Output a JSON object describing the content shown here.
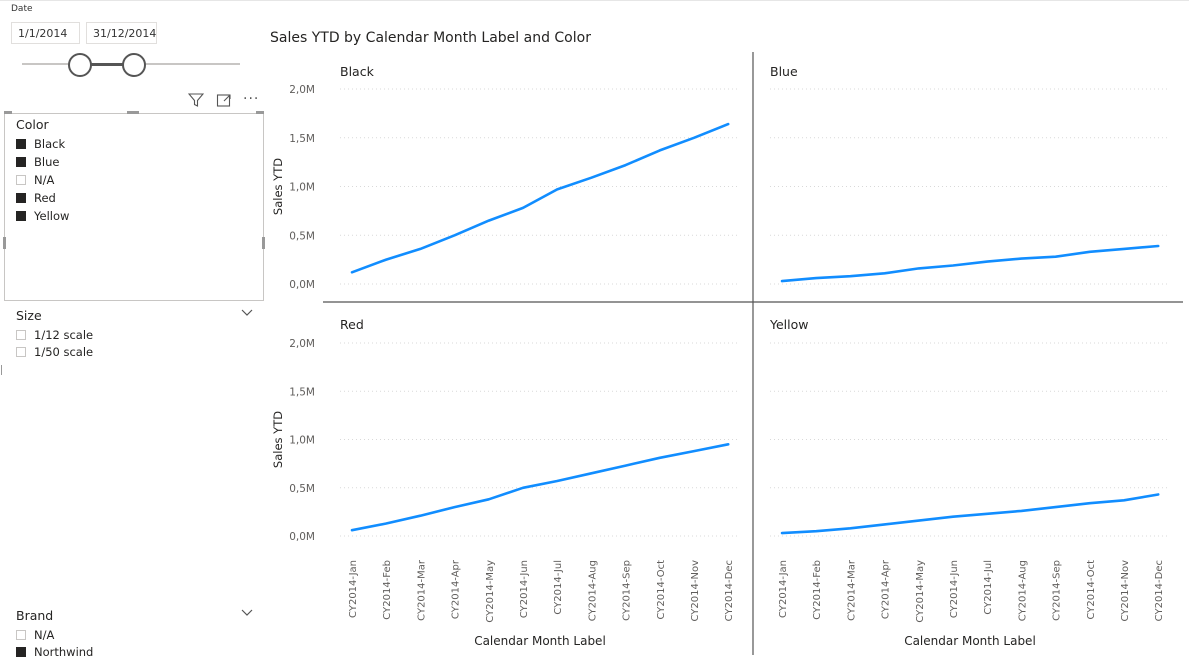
{
  "date_slicer": {
    "label": "Date",
    "start": "1/1/2014",
    "end": "31/12/2014"
  },
  "visual_header": {
    "icons": [
      "filter-icon",
      "focus-mode-icon",
      "more-options-icon"
    ]
  },
  "color_slicer": {
    "title": "Color",
    "items": [
      {
        "label": "Black",
        "checked": true
      },
      {
        "label": "Blue",
        "checked": true
      },
      {
        "label": "N/A",
        "checked": false
      },
      {
        "label": "Red",
        "checked": true
      },
      {
        "label": "Yellow",
        "checked": true
      }
    ]
  },
  "size_slicer": {
    "title": "Size",
    "items": [
      {
        "label": "1/12 scale",
        "checked": false
      },
      {
        "label": "1/50 scale",
        "checked": false
      }
    ]
  },
  "brand_slicer": {
    "title": "Brand",
    "items": [
      {
        "label": "N/A",
        "checked": false
      },
      {
        "label": "Northwind",
        "checked": true
      }
    ]
  },
  "chart_data": {
    "type": "line",
    "title": "Sales YTD by Calendar Month Label and Color",
    "xlabel": "Calendar Month Label",
    "ylabel": "Sales YTD",
    "categories": [
      "CY2014-Jan",
      "CY2014-Feb",
      "CY2014-Mar",
      "CY2014-Apr",
      "CY2014-May",
      "CY2014-Jun",
      "CY2014-Jul",
      "CY2014-Aug",
      "CY2014-Sep",
      "CY2014-Oct",
      "CY2014-Nov",
      "CY2014-Dec"
    ],
    "yticks": [
      "0,0M",
      "0,5M",
      "1,0M",
      "1,5M",
      "2,0M"
    ],
    "ylim": [
      0,
      2.0
    ],
    "grid": true,
    "line_color": "#118DFF",
    "series": [
      {
        "name": "Black",
        "values": [
          0.12,
          0.25,
          0.36,
          0.5,
          0.65,
          0.78,
          0.97,
          1.09,
          1.22,
          1.37,
          1.5,
          1.64
        ]
      },
      {
        "name": "Blue",
        "values": [
          0.03,
          0.06,
          0.08,
          0.11,
          0.16,
          0.19,
          0.23,
          0.26,
          0.28,
          0.33,
          0.36,
          0.39
        ]
      },
      {
        "name": "Red",
        "values": [
          0.06,
          0.13,
          0.21,
          0.3,
          0.38,
          0.5,
          0.57,
          0.65,
          0.73,
          0.81,
          0.88,
          0.95
        ]
      },
      {
        "name": "Yellow",
        "values": [
          0.03,
          0.05,
          0.08,
          0.12,
          0.16,
          0.2,
          0.23,
          0.26,
          0.3,
          0.34,
          0.37,
          0.43
        ]
      }
    ]
  }
}
